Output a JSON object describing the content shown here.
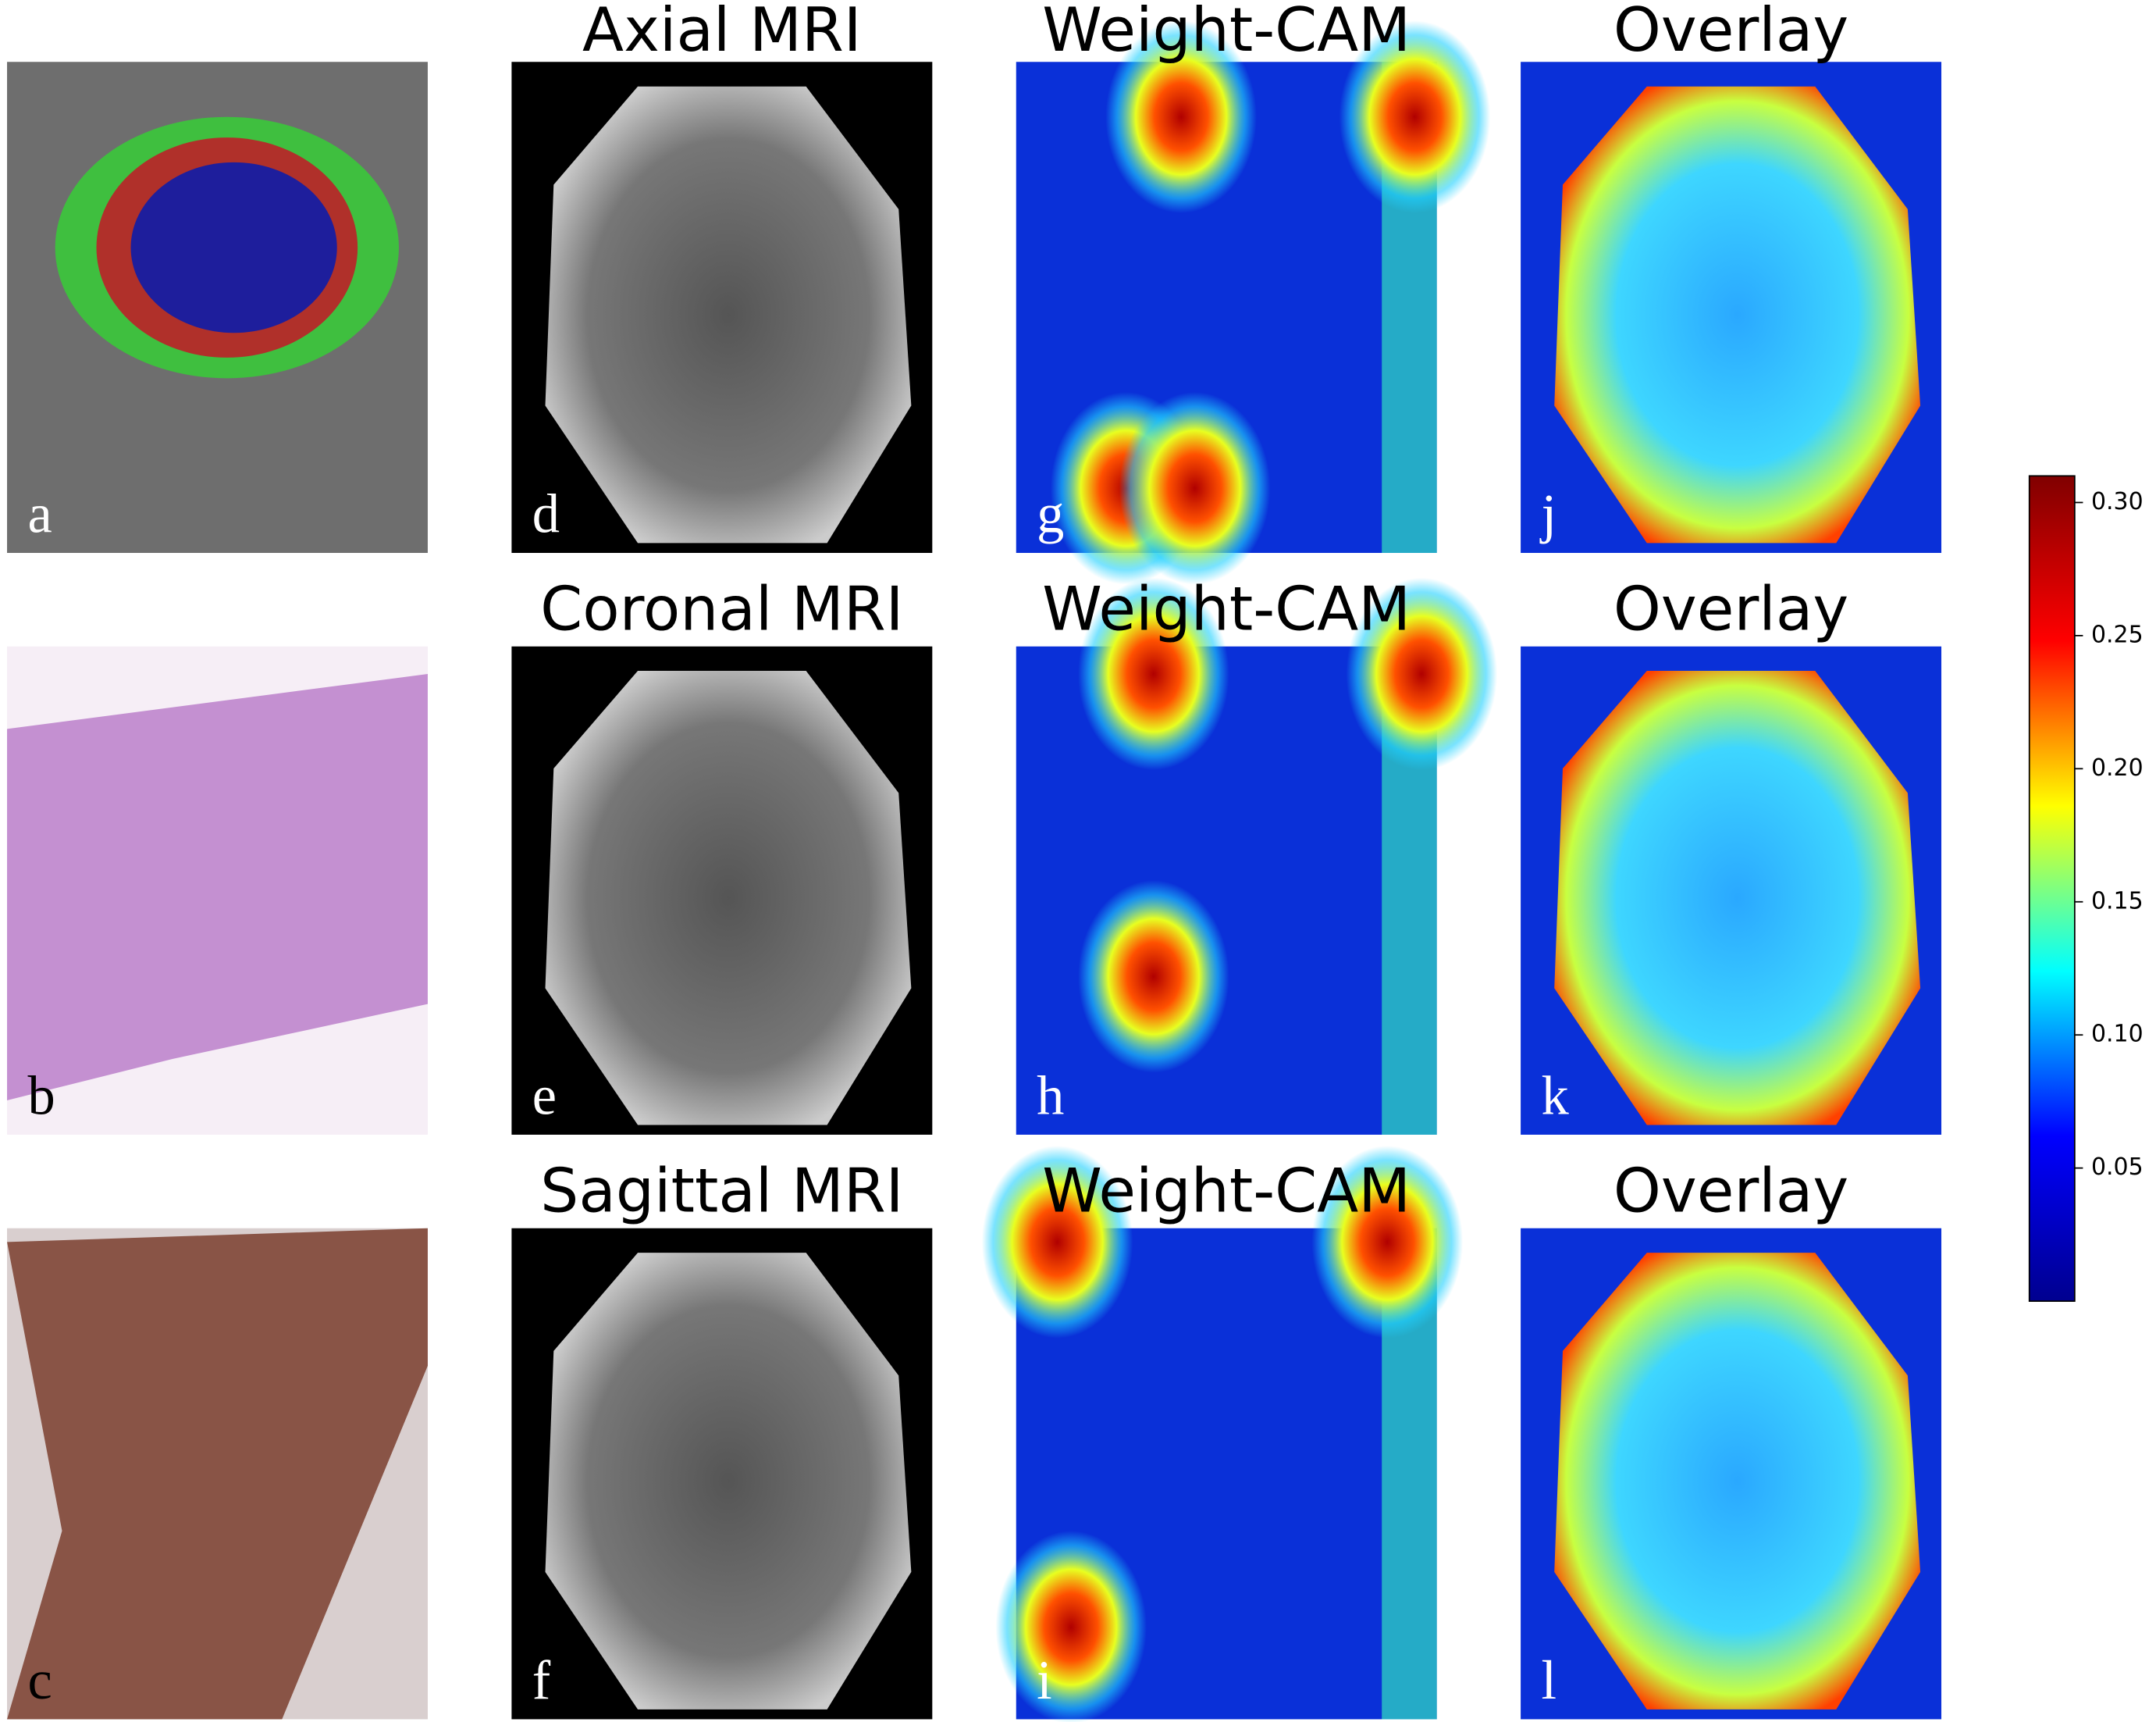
{
  "figure": {
    "rows": [
      [
        {
          "label": "a"
        },
        {
          "title": "Axial MRI",
          "label": "d"
        },
        {
          "title": "Weight-CAM",
          "label": "g"
        },
        {
          "title": "Overlay",
          "label": "j"
        }
      ],
      [
        {
          "label": "b"
        },
        {
          "title": "Coronal MRI",
          "label": "e"
        },
        {
          "title": "Weight-CAM",
          "label": "h"
        },
        {
          "title": "Overlay",
          "label": "k"
        }
      ],
      [
        {
          "label": "c"
        },
        {
          "title": "Sagittal MRI",
          "label": "f"
        },
        {
          "title": "Weight-CAM",
          "label": "i"
        },
        {
          "title": "Overlay",
          "label": "l"
        }
      ]
    ]
  },
  "colorbar": {
    "colormap": "jet",
    "ylim": [
      0,
      0.31
    ],
    "yticks": [
      0.05,
      {
        "value": 0.1,
        "label": "0.10"
      },
      0.15,
      {
        "value": 0.2,
        "label": "0.20"
      },
      0.25,
      {
        "value": 0.3,
        "label": "0.30"
      }
    ]
  }
}
